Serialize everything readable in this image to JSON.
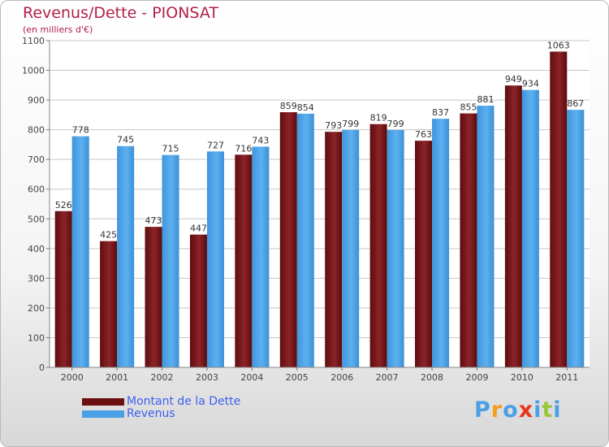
{
  "header": {
    "title": "Revenus/Dette - PIONSAT",
    "subtitle": "(en milliers d'€)"
  },
  "chart_data": {
    "type": "bar",
    "categories": [
      "2000",
      "2001",
      "2002",
      "2003",
      "2004",
      "2005",
      "2006",
      "2007",
      "2008",
      "2009",
      "2010",
      "2011"
    ],
    "series": [
      {
        "name": "Montant de la Dette",
        "values": [
          526,
          425,
          473,
          447,
          716,
          859,
          793,
          819,
          763,
          855,
          949,
          1063
        ],
        "color": "#7a1518"
      },
      {
        "name": "Revenus",
        "values": [
          778,
          745,
          715,
          727,
          743,
          854,
          799,
          799,
          837,
          881,
          934,
          867
        ],
        "color": "#4fa3e3"
      }
    ],
    "yticks": [
      0,
      100,
      200,
      300,
      400,
      500,
      600,
      700,
      800,
      900,
      1000,
      1100
    ],
    "ylim": [
      0,
      1100
    ],
    "grid": true,
    "legend_position": "bottom-left"
  },
  "legend": {
    "items": [
      {
        "label": "Montant de la Dette",
        "color": "#6b0f10"
      },
      {
        "label": "Revenus",
        "color": "#4aa0e6"
      }
    ]
  },
  "brand": {
    "letters": [
      "P",
      "r",
      "o",
      "x",
      "i",
      "t",
      "i"
    ],
    "colors": [
      "#4aa0e6",
      "#f29d1f",
      "#4aa0e6",
      "#e8351f",
      "#4aa0e6",
      "#9bc53d",
      "#4aa0e6"
    ]
  }
}
